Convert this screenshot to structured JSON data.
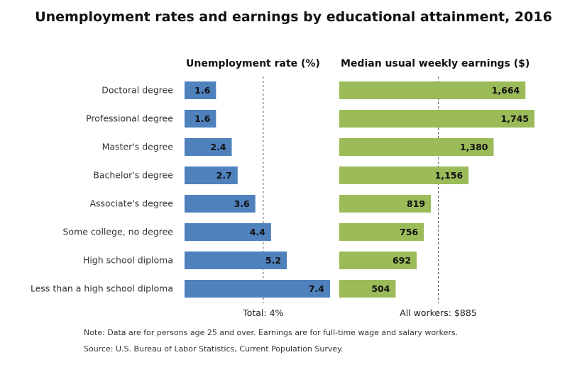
{
  "chart_data": {
    "type": "bar",
    "orientation": "horizontal",
    "title": "Unemployment rates and earnings by educational attainment, 2016",
    "categories": [
      "Doctoral degree",
      "Professional degree",
      "Master's degree",
      "Bachelor's degree",
      "Associate's degree",
      "Some college, no degree",
      "High school diploma",
      "Less than a high school diploma"
    ],
    "series": [
      {
        "name": "Unemployment rate (%)",
        "values": [
          1.6,
          1.6,
          2.4,
          2.7,
          3.6,
          4.4,
          5.2,
          7.4
        ],
        "labels": [
          "1.6",
          "1.6",
          "2.4",
          "2.7",
          "3.6",
          "4.4",
          "5.2",
          "7.4"
        ],
        "color": "#4f81bd",
        "reference_value": 4,
        "reference_label": "Total: 4%",
        "xlim": [
          0,
          7.4
        ]
      },
      {
        "name": "Median usual weekly earnings ($)",
        "values": [
          1664,
          1745,
          1380,
          1156,
          819,
          756,
          692,
          504
        ],
        "labels": [
          "1,664",
          "1,745",
          "1,380",
          "1,156",
          "819",
          "756",
          "692",
          "504"
        ],
        "color": "#9bbb59",
        "reference_value": 885,
        "reference_label": "All workers: $885",
        "xlim": [
          0,
          1745
        ]
      }
    ],
    "notes": [
      "Note: Data are for persons age 25 and over. Earnings are for full-time wage and salary workers.",
      "Source: U.S. Bureau of Labor Statistics, Current Population Survey."
    ]
  }
}
